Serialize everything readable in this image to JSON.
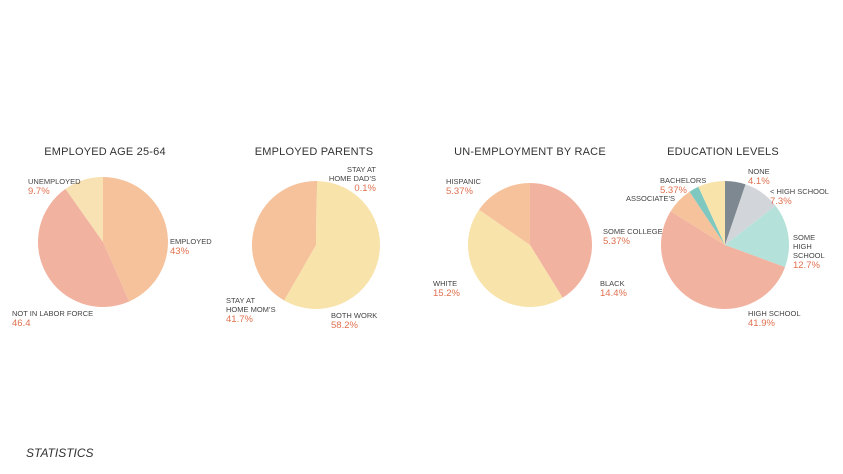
{
  "chart_data": [
    {
      "type": "pie",
      "title": "EMPLOYED AGE 25-64",
      "categories": [
        "EMPLOYED",
        "NOT IN LABOR FORCE",
        "UNEMPLOYED"
      ],
      "values": [
        43,
        46.4,
        9.7
      ],
      "value_labels": [
        "43%",
        "46.4",
        "9.7%"
      ],
      "colors": [
        "#f6c29b",
        "#f2b2a0",
        "#f8e1b2"
      ]
    },
    {
      "type": "pie",
      "title": "EMPLOYED PARENTS",
      "categories": [
        "STAY AT HOME DAD’S",
        "BOTH WORK",
        "STAY AT HOME MOM’S"
      ],
      "values": [
        0.1,
        58.2,
        41.7
      ],
      "value_labels": [
        "0.1%",
        "58.2%",
        "41.7%"
      ],
      "colors": [
        "#e0604a",
        "#f8e3ab",
        "#f6c29b"
      ]
    },
    {
      "type": "pie",
      "title": "UN-EMPLOYMENT BY RACE",
      "categories": [
        "BLACK",
        "WHITE",
        "HISPANIC"
      ],
      "values": [
        14.4,
        15.2,
        5.37
      ],
      "value_labels": [
        "14.4%",
        "15.2%",
        "5.37%"
      ],
      "colors": [
        "#f2b2a0",
        "#f8e3ab",
        "#f6c29b"
      ]
    },
    {
      "type": "pie",
      "title": "EDUCATION LEVELS",
      "categories": [
        "NONE",
        "< HIGH SCHOOL",
        "SOME HIGH SCHOOL",
        "HIGH SCHOOL",
        "SOME COLLEGE",
        "ASSOCIATE’S",
        "BACHELORS"
      ],
      "values": [
        4.1,
        7.3,
        12.7,
        41.9,
        5.37,
        2,
        5.37
      ],
      "value_labels": [
        "4.1%",
        "7.3%",
        "12.7%",
        "41.9%",
        "5.37%",
        null,
        "5.37%"
      ],
      "colors": [
        "#7d8890",
        "#d2d6da",
        "#b4e2da",
        "#f2b2a0",
        "#f6c29b",
        "#7ec8c0",
        "#f8e3ab"
      ]
    }
  ],
  "caption": "STATISTICS"
}
